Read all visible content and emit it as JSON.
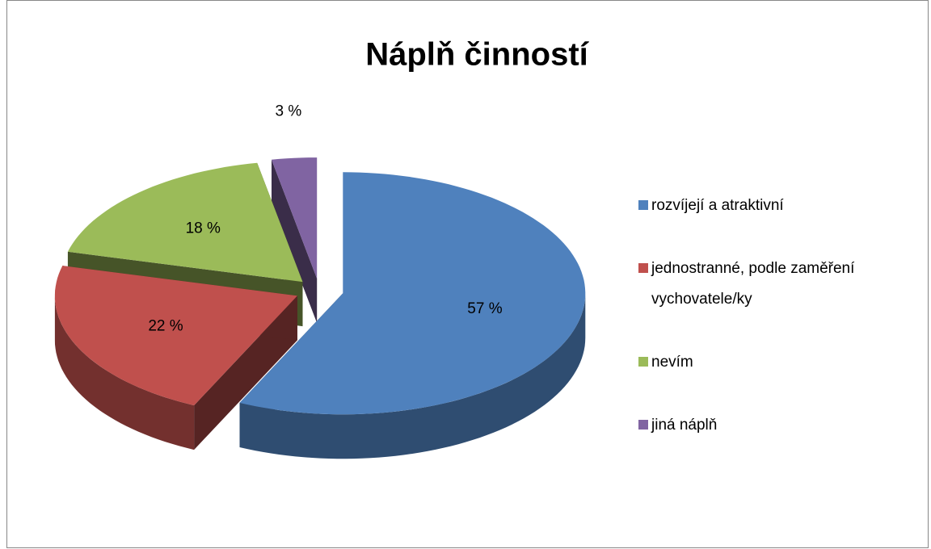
{
  "chart_data": {
    "type": "pie3d",
    "title": "Náplň činností",
    "categories": [
      "rozvíjejí a atraktivní",
      "jednostranné, podle zaměření vychovatele/ky",
      "nevím",
      "jiná náplň"
    ],
    "values": [
      57,
      22,
      18,
      3
    ],
    "value_labels": [
      "57 %",
      "22 %",
      "18 %",
      "3 %"
    ],
    "colors": [
      "#4f81bd",
      "#c0504d",
      "#9bbb59",
      "#8064a2"
    ],
    "legend": "right"
  }
}
